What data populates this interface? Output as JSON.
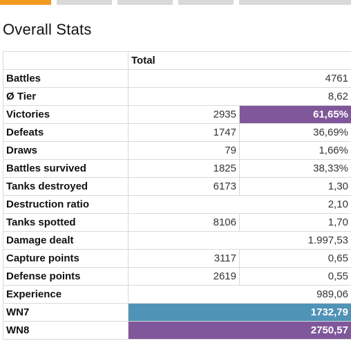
{
  "colors": {
    "accent_orange": "#f29a1f",
    "tab_gray": "#d9d9d9",
    "highlight_purple": "#7f579a",
    "highlight_blue": "#4f93b7",
    "border": "#d9d9d9"
  },
  "page": {
    "title": "Overall Stats"
  },
  "table": {
    "header": {
      "label": "",
      "total": "Total"
    },
    "rows": [
      {
        "label": "Battles",
        "count": "",
        "value": "4761"
      },
      {
        "label": "Ø Tier",
        "count": "",
        "value": "8,62"
      },
      {
        "label": "Victories",
        "count": "2935",
        "value": "61,65%"
      },
      {
        "label": "Defeats",
        "count": "1747",
        "value": "36,69%"
      },
      {
        "label": "Draws",
        "count": "79",
        "value": "1,66%"
      },
      {
        "label": "Battles survived",
        "count": "1825",
        "value": "38,33%"
      },
      {
        "label": "Tanks destroyed",
        "count": "6173",
        "value": "1,30"
      },
      {
        "label": "Destruction ratio",
        "count": "",
        "value": "2,10"
      },
      {
        "label": "Tanks spotted",
        "count": "8106",
        "value": "1,70"
      },
      {
        "label": "Damage dealt",
        "count": "",
        "value": "1.997,53"
      },
      {
        "label": "Capture points",
        "count": "3117",
        "value": "0,65"
      },
      {
        "label": "Defense points",
        "count": "2619",
        "value": "0,55"
      },
      {
        "label": "Experience",
        "count": "",
        "value": "989,06"
      },
      {
        "label": "WN7",
        "count": "",
        "value": "1732,79"
      },
      {
        "label": "WN8",
        "count": "",
        "value": "2750,57"
      }
    ]
  }
}
